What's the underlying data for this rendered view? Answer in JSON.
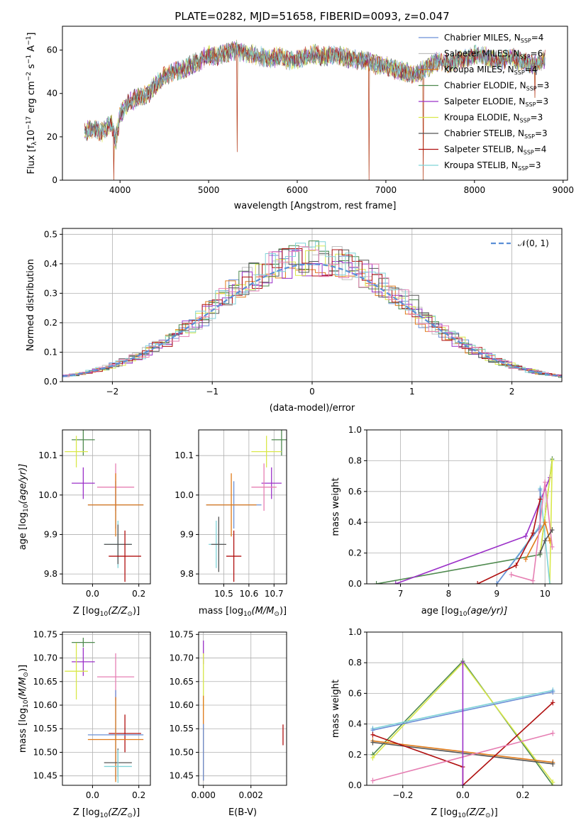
{
  "title": "PLATE=0282, MJD=51658, FIBERID=0093, z=0.047",
  "series_colors": {
    "Chabrier MILES": "#6a8fd6",
    "Salpeter MILES": "#bfbfbf",
    "Kroupa MILES": "#e07b1a",
    "Chabrier ELODIE": "#4f8a4f",
    "Salpeter ELODIE": "#9b30c8",
    "Kroupa ELODIE": "#d9e84a",
    "Chabrier STELIB": "#555555",
    "Salpeter STELIB": "#b01010",
    "Kroupa STELIB": "#7fd3d8",
    "Salpeter MILES (alt)": "#e67fb3"
  },
  "chart_data": [
    {
      "id": "spectrum",
      "type": "line",
      "title": "PLATE=0282, MJD=51658, FIBERID=0093, z=0.047",
      "xlabel": "wavelength [Angstrom, rest frame]",
      "ylabel_parts": [
        "Flux [f",
        "λ",
        "10",
        "−17",
        " erg cm",
        "−2",
        " s",
        "−1",
        " A",
        "−1",
        "]"
      ],
      "xlim": [
        3350,
        9050
      ],
      "ylim": [
        0,
        71
      ],
      "xticks": [
        4000,
        5000,
        6000,
        7000,
        8000,
        9000
      ],
      "yticks": [
        0,
        20,
        40,
        60
      ],
      "legend": [
        {
          "name": "Chabrier MILES",
          "n": "4",
          "color": "#6a8fd6"
        },
        {
          "name": "Salpeter MILES",
          "n": "6",
          "color": "#bfbfbf"
        },
        {
          "name": "Kroupa MILES",
          "n": "4",
          "color": "#e07b1a"
        },
        {
          "name": "Chabrier ELODIE",
          "n": "3",
          "color": "#4f8a4f"
        },
        {
          "name": "Salpeter ELODIE",
          "n": "3",
          "color": "#9b30c8"
        },
        {
          "name": "Kroupa ELODIE",
          "n": "3",
          "color": "#d9e84a"
        },
        {
          "name": "Chabrier STELIB",
          "n": "3",
          "color": "#555555"
        },
        {
          "name": "Salpeter STELIB",
          "n": "4",
          "color": "#b01010"
        },
        {
          "name": "Kroupa STELIB",
          "n": "3",
          "color": "#7fd3d8"
        }
      ],
      "continuum": [
        [
          3600,
          22
        ],
        [
          3700,
          24
        ],
        [
          3800,
          22
        ],
        [
          3900,
          27
        ],
        [
          3950,
          18
        ],
        [
          4000,
          30
        ],
        [
          4100,
          36
        ],
        [
          4200,
          38
        ],
        [
          4300,
          39
        ],
        [
          4400,
          44
        ],
        [
          4500,
          48
        ],
        [
          4600,
          50
        ],
        [
          4700,
          51
        ],
        [
          4800,
          53
        ],
        [
          4900,
          55
        ],
        [
          5000,
          58
        ],
        [
          5100,
          57
        ],
        [
          5200,
          59
        ],
        [
          5300,
          60
        ],
        [
          5400,
          59
        ],
        [
          5500,
          58
        ],
        [
          5600,
          57
        ],
        [
          5700,
          56
        ],
        [
          5800,
          57
        ],
        [
          5900,
          55
        ],
        [
          6000,
          56
        ],
        [
          6100,
          57
        ],
        [
          6200,
          58
        ],
        [
          6300,
          57
        ],
        [
          6400,
          58
        ],
        [
          6500,
          57
        ],
        [
          6600,
          56
        ],
        [
          6700,
          55
        ],
        [
          6800,
          55
        ],
        [
          6900,
          53
        ],
        [
          7000,
          53
        ],
        [
          7100,
          51
        ],
        [
          7200,
          50
        ],
        [
          7300,
          49
        ],
        [
          7400,
          50
        ],
        [
          7500,
          53
        ],
        [
          7600,
          55
        ],
        [
          7700,
          54
        ],
        [
          7800,
          55
        ],
        [
          7900,
          56
        ],
        [
          8000,
          58
        ],
        [
          8100,
          57
        ],
        [
          8200,
          56
        ],
        [
          8300,
          55
        ],
        [
          8400,
          57
        ],
        [
          8500,
          55
        ],
        [
          8600,
          54
        ],
        [
          8700,
          53
        ],
        [
          8800,
          56
        ]
      ],
      "dips": [
        [
          3930,
          0
        ],
        [
          5320,
          13
        ],
        [
          6810,
          0
        ],
        [
          7420,
          0
        ],
        [
          8680,
          38
        ]
      ]
    },
    {
      "id": "residuals",
      "type": "histogram",
      "xlabel": "(data-model)/error",
      "ylabel": "Normed distribution",
      "xlim": [
        -2.5,
        2.5
      ],
      "ylim": [
        0,
        0.52
      ],
      "xticks": [
        -2,
        -1,
        0,
        1,
        2
      ],
      "yticks": [
        0.0,
        0.1,
        0.2,
        0.3,
        0.4,
        0.5
      ],
      "legend_label": "𝒩(0, 1)",
      "bin_width": 0.1
    },
    {
      "id": "age_vs_Z",
      "type": "errorbar",
      "xlabel_parts": [
        "Z [log",
        "10",
        "(Z/Z",
        "⊙",
        ")]"
      ],
      "ylabel_parts": [
        "age  [log",
        "10",
        "(age/yr)]"
      ],
      "xlim": [
        -0.13,
        0.25
      ],
      "ylim": [
        9.775,
        10.165
      ],
      "xticks": [
        0.0,
        0.2
      ],
      "yticks": [
        9.8,
        9.9,
        10.0,
        10.1
      ],
      "points": [
        {
          "color": "#4f8a4f",
          "x": -0.04,
          "xe": 0.05,
          "y": 10.14,
          "ye": 0.04
        },
        {
          "color": "#d9e84a",
          "x": -0.07,
          "xe": 0.05,
          "y": 10.11,
          "ye": 0.04
        },
        {
          "color": "#9b30c8",
          "x": -0.04,
          "xe": 0.05,
          "y": 10.03,
          "ye": 0.04
        },
        {
          "color": "#e67fb3",
          "x": 0.1,
          "xe": 0.08,
          "y": 10.02,
          "ye": 0.06
        },
        {
          "color": "#6a8fd6",
          "x": 0.1,
          "xe": 0.12,
          "y": 9.975,
          "ye": 0.06
        },
        {
          "color": "#e07b1a",
          "x": 0.1,
          "xe": 0.12,
          "y": 9.975,
          "ye": 0.08
        },
        {
          "color": "#7fd3d8",
          "x": 0.11,
          "xe": 0.06,
          "y": 9.875,
          "ye": 0.06
        },
        {
          "color": "#555555",
          "x": 0.11,
          "xe": 0.06,
          "y": 9.875,
          "ye": 0.05
        },
        {
          "color": "#b01010",
          "x": 0.14,
          "xe": 0.07,
          "y": 9.845,
          "ye": 0.065
        }
      ]
    },
    {
      "id": "age_vs_mass",
      "type": "errorbar",
      "xlabel_parts": [
        "mass [log",
        "10",
        "(M/M",
        "⊙",
        ")]"
      ],
      "ylabel_parts": [],
      "xlim": [
        10.4,
        10.75
      ],
      "ylim": [
        9.775,
        10.165
      ],
      "xticks": [
        10.5,
        10.6,
        10.7
      ],
      "yticks": [
        9.8,
        9.9,
        10.0,
        10.1
      ],
      "points": [
        {
          "color": "#4f8a4f",
          "x": 10.73,
          "xe": 0.04,
          "y": 10.14,
          "ye": 0.04
        },
        {
          "color": "#d9e84a",
          "x": 10.67,
          "xe": 0.06,
          "y": 10.11,
          "ye": 0.04
        },
        {
          "color": "#9b30c8",
          "x": 10.69,
          "xe": 0.04,
          "y": 10.03,
          "ye": 0.04
        },
        {
          "color": "#e67fb3",
          "x": 10.66,
          "xe": 0.05,
          "y": 10.02,
          "ye": 0.06
        },
        {
          "color": "#6a8fd6",
          "x": 10.54,
          "xe": 0.11,
          "y": 9.975,
          "ye": 0.06
        },
        {
          "color": "#e07b1a",
          "x": 10.53,
          "xe": 0.1,
          "y": 9.975,
          "ye": 0.08
        },
        {
          "color": "#7fd3d8",
          "x": 10.47,
          "xe": 0.03,
          "y": 9.875,
          "ye": 0.06
        },
        {
          "color": "#555555",
          "x": 10.48,
          "xe": 0.03,
          "y": 9.875,
          "ye": 0.07
        },
        {
          "color": "#b01010",
          "x": 10.54,
          "xe": 0.03,
          "y": 9.845,
          "ye": 0.065
        }
      ]
    },
    {
      "id": "age_weights",
      "type": "line",
      "xlabel_parts": [
        "age  [log",
        "10",
        "(age/yr)]"
      ],
      "ylabel": "mass weight",
      "xlim": [
        6.3,
        10.35
      ],
      "ylim": [
        0,
        1.0
      ],
      "xticks": [
        7,
        8,
        9,
        10
      ],
      "yticks": [
        0.0,
        0.2,
        0.4,
        0.6,
        0.8,
        1.0
      ],
      "series": [
        {
          "color": "#4f8a4f",
          "points": [
            [
              6.5,
              0.0
            ],
            [
              9.9,
              0.19
            ],
            [
              10.15,
              0.81
            ]
          ]
        },
        {
          "color": "#9b30c8",
          "points": [
            [
              6.9,
              0.0
            ],
            [
              9.6,
              0.31
            ],
            [
              10.1,
              0.69
            ]
          ]
        },
        {
          "color": "#d9e84a",
          "points": [
            [
              9.9,
              0.2
            ],
            [
              10.15,
              0.8
            ],
            [
              10.1,
              0.0
            ]
          ]
        },
        {
          "color": "#7fd3d8",
          "points": [
            [
              9.0,
              0.0
            ],
            [
              9.9,
              0.38
            ],
            [
              9.9,
              0.62
            ],
            [
              10.1,
              0.0
            ]
          ]
        },
        {
          "color": "#6a8fd6",
          "points": [
            [
              9.0,
              0.0
            ],
            [
              9.9,
              0.37
            ],
            [
              9.9,
              0.61
            ]
          ]
        },
        {
          "color": "#e07b1a",
          "points": [
            [
              9.6,
              0.16
            ],
            [
              10.0,
              0.4
            ],
            [
              10.1,
              0.28
            ]
          ]
        },
        {
          "color": "#b01010",
          "points": [
            [
              8.6,
              0.0
            ],
            [
              9.4,
              0.12
            ],
            [
              9.75,
              0.33
            ],
            [
              9.9,
              0.55
            ]
          ]
        },
        {
          "color": "#e67fb3",
          "points": [
            [
              9.3,
              0.06
            ],
            [
              9.75,
              0.02
            ],
            [
              10.0,
              0.66
            ],
            [
              10.15,
              0.24
            ]
          ]
        },
        {
          "color": "#555555",
          "points": [
            [
              9.9,
              0.2
            ],
            [
              10.0,
              0.28
            ],
            [
              10.15,
              0.35
            ]
          ]
        }
      ]
    },
    {
      "id": "mass_vs_Z",
      "type": "errorbar",
      "xlabel_parts": [
        "Z [log",
        "10",
        "(Z/Z",
        "⊙",
        ")]"
      ],
      "ylabel_parts": [
        "mass [log",
        "10",
        "(M/M",
        "⊙",
        ")]"
      ],
      "xlim": [
        -0.13,
        0.25
      ],
      "ylim": [
        10.43,
        10.755
      ],
      "xticks": [
        0.0,
        0.2
      ],
      "yticks": [
        10.45,
        10.5,
        10.55,
        10.6,
        10.65,
        10.7,
        10.75
      ],
      "points": [
        {
          "color": "#4f8a4f",
          "x": -0.04,
          "xe": 0.05,
          "y": 10.733,
          "ye": 0.01
        },
        {
          "color": "#9b30c8",
          "x": -0.04,
          "xe": 0.05,
          "y": 10.692,
          "ye": 0.03
        },
        {
          "color": "#d9e84a",
          "x": -0.07,
          "xe": 0.05,
          "y": 10.672,
          "ye": 0.06
        },
        {
          "color": "#e67fb3",
          "x": 0.1,
          "xe": 0.08,
          "y": 10.66,
          "ye": 0.05
        },
        {
          "color": "#b01010",
          "x": 0.14,
          "xe": 0.07,
          "y": 10.54,
          "ye": 0.04
        },
        {
          "color": "#6a8fd6",
          "x": 0.1,
          "xe": 0.12,
          "y": 10.537,
          "ye": 0.095
        },
        {
          "color": "#e07b1a",
          "x": 0.1,
          "xe": 0.12,
          "y": 10.527,
          "ye": 0.09
        },
        {
          "color": "#555555",
          "x": 0.11,
          "xe": 0.06,
          "y": 10.478,
          "ye": 0.03
        },
        {
          "color": "#7fd3d8",
          "x": 0.11,
          "xe": 0.06,
          "y": 10.47,
          "ye": 0.035
        }
      ]
    },
    {
      "id": "mass_vs_ebv",
      "type": "errorbar",
      "xlabel": "E(B-V)",
      "ylabel_parts": [],
      "xlim": [
        -0.0002,
        0.0035
      ],
      "ylim": [
        10.43,
        10.755
      ],
      "xticks": [
        0.0,
        0.002
      ],
      "xtick_labels": [
        "0.000",
        "0.002"
      ],
      "yticks": [
        10.45,
        10.5,
        10.55,
        10.6,
        10.65,
        10.7,
        10.75
      ],
      "points": [
        {
          "color": "#9b30c8",
          "x": 0.0,
          "xe": 0.0,
          "y": 10.712,
          "ye": 0.025
        },
        {
          "color": "#d9e84a",
          "x": 0.0,
          "xe": 0.0,
          "y": 10.65,
          "ye": 0.06
        },
        {
          "color": "#e07b1a",
          "x": 0.0,
          "xe": 0.0,
          "y": 10.53,
          "ye": 0.09
        },
        {
          "color": "#6a8fd6",
          "x": 0.0,
          "xe": 0.0,
          "y": 10.5,
          "ye": 0.06
        },
        {
          "color": "#b01010",
          "x": 0.00335,
          "xe": 0.0,
          "y": 10.537,
          "ye": 0.022
        }
      ]
    },
    {
      "id": "Z_weights",
      "type": "line",
      "xlabel_parts": [
        "Z [log",
        "10",
        "(Z/Z",
        "⊙",
        ")]"
      ],
      "ylabel": "mass weight",
      "xlim": [
        -0.32,
        0.33
      ],
      "ylim": [
        0,
        1.0
      ],
      "xticks": [
        -0.2,
        0.0,
        0.2
      ],
      "yticks": [
        0.0,
        0.2,
        0.4,
        0.6,
        0.8,
        1.0
      ],
      "series": [
        {
          "color": "#4f8a4f",
          "points": [
            [
              -0.3,
              0.2
            ],
            [
              0.0,
              0.81
            ],
            [
              0.3,
              0.0
            ]
          ]
        },
        {
          "color": "#d9e84a",
          "points": [
            [
              -0.3,
              0.18
            ],
            [
              0.0,
              0.8
            ],
            [
              0.3,
              0.02
            ]
          ]
        },
        {
          "color": "#7fd3d8",
          "points": [
            [
              -0.3,
              0.37
            ],
            [
              0.3,
              0.62
            ]
          ]
        },
        {
          "color": "#6a8fd6",
          "points": [
            [
              -0.3,
              0.36
            ],
            [
              0.3,
              0.61
            ]
          ]
        },
        {
          "color": "#e07b1a",
          "points": [
            [
              -0.3,
              0.29
            ],
            [
              0.3,
              0.15
            ]
          ]
        },
        {
          "color": "#555555",
          "points": [
            [
              -0.3,
              0.28
            ],
            [
              0.3,
              0.14
            ]
          ]
        },
        {
          "color": "#b01010",
          "points": [
            [
              -0.3,
              0.33
            ],
            [
              0.0,
              0.12
            ],
            [
              0.0,
              0.0
            ],
            [
              0.3,
              0.54
            ]
          ]
        },
        {
          "color": "#e67fb3",
          "points": [
            [
              -0.3,
              0.03
            ],
            [
              0.3,
              0.34
            ]
          ]
        },
        {
          "color": "#9b30c8",
          "points": [
            [
              0.0,
              0.0
            ],
            [
              0.0,
              0.8
            ]
          ]
        }
      ]
    }
  ]
}
